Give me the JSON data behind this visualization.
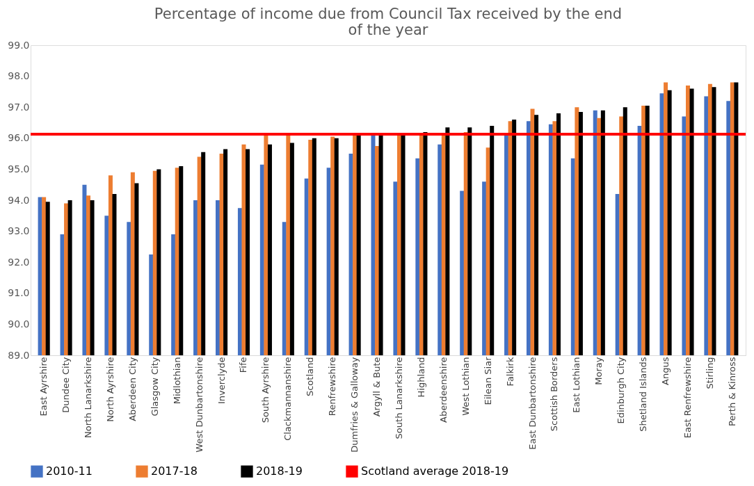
{
  "chart_data": {
    "type": "bar",
    "title": [
      "Percentage of income due from Council Tax received by the end",
      "of the year"
    ],
    "categories": [
      "East Ayrshire",
      "Dundee City",
      "North Lanarkshire",
      "North Ayrshire",
      "Aberdeen City",
      "Glasgow City",
      "Midlothian",
      "West Dunbartonshire",
      "Inverclyde",
      "Fife",
      "South Ayrshire",
      "Clackmannanshire",
      "Scotland",
      "Renfrewshire",
      "Dumfries & Galloway",
      "Argyll & Bute",
      "South Lanarkshire",
      "Highland",
      "Aberdeenshire",
      "West Lothian",
      "Eilean Siar",
      "Falkirk",
      "East Dunbartonshire",
      "Scottish Borders",
      "East Lothian",
      "Moray",
      "Edinburgh City",
      "Shetland Islands",
      "Angus",
      "East Renfrewshire",
      "Stirling",
      "Perth & Kinross"
    ],
    "series": [
      {
        "name": "2010-11",
        "color": "#4472c4",
        "values": [
          94.1,
          92.9,
          94.5,
          93.5,
          93.3,
          92.25,
          92.9,
          94.0,
          94.0,
          93.75,
          95.15,
          93.3,
          94.7,
          95.05,
          95.5,
          96.1,
          94.6,
          95.35,
          95.8,
          94.3,
          94.6,
          96.1,
          96.55,
          96.45,
          95.35,
          96.9,
          94.2,
          96.4,
          97.45,
          96.7,
          97.35,
          97.2
        ]
      },
      {
        "name": "2017-18",
        "color": "#ed7d31",
        "values": [
          94.1,
          93.9,
          94.15,
          94.8,
          94.9,
          94.95,
          95.05,
          95.4,
          95.5,
          95.8,
          96.1,
          96.1,
          95.95,
          96.05,
          96.1,
          95.75,
          96.1,
          96.15,
          96.15,
          96.2,
          95.7,
          96.55,
          96.95,
          96.55,
          97.0,
          96.65,
          96.7,
          97.05,
          97.8,
          97.7,
          97.75,
          97.8
        ]
      },
      {
        "name": "2018-19",
        "color": "#000000",
        "values": [
          93.95,
          94.0,
          94.0,
          94.2,
          94.55,
          95.0,
          95.1,
          95.55,
          95.65,
          95.65,
          95.8,
          95.85,
          96.0,
          96.0,
          96.1,
          96.1,
          96.1,
          96.2,
          96.35,
          96.35,
          96.4,
          96.6,
          96.75,
          96.8,
          96.85,
          96.9,
          97.0,
          97.05,
          97.55,
          97.6,
          97.65,
          97.8
        ]
      }
    ],
    "ylim": [
      89,
      99
    ],
    "yticks": [
      {
        "value": 89,
        "label": "89.0"
      },
      {
        "value": 90,
        "label": "90.0"
      },
      {
        "value": 91,
        "label": "91.0"
      },
      {
        "value": 92,
        "label": "92.0"
      },
      {
        "value": 93,
        "label": "93.0"
      },
      {
        "value": 94,
        "label": "94.0"
      },
      {
        "value": 95,
        "label": "95.0"
      },
      {
        "value": 96,
        "label": "96.0"
      },
      {
        "value": 97,
        "label": "97.0"
      },
      {
        "value": 98,
        "label": "98.0"
      },
      {
        "value": 99,
        "label": "99.0"
      }
    ],
    "ref_lines": [
      {
        "axis": "y",
        "value": 96.13,
        "label": "Scotland average 2018-19",
        "color": "#ff0000"
      }
    ],
    "grid": false,
    "legend": "bottom"
  }
}
